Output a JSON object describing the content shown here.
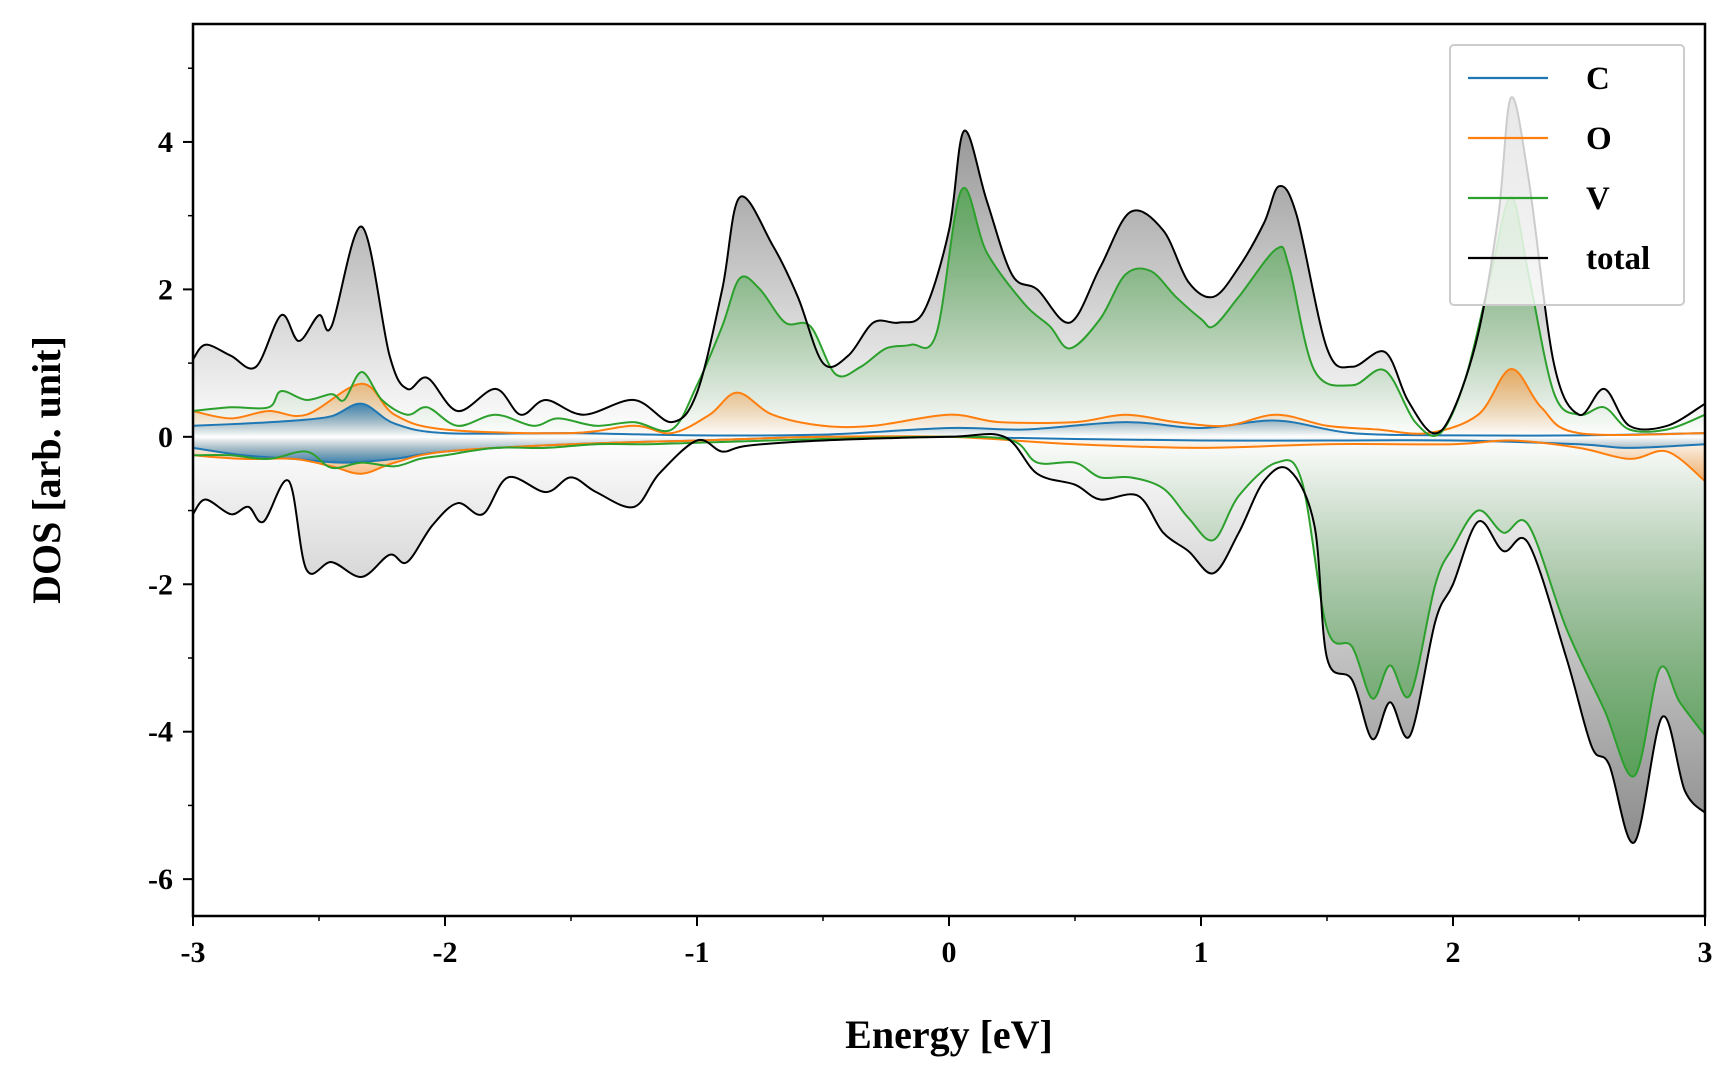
{
  "chart_data": {
    "type": "line",
    "title": "",
    "xlabel": "Energy [eV]",
    "ylabel": "DOS [arb. unit]",
    "xlim": [
      -3,
      3
    ],
    "ylim": [
      -6.5,
      5.6
    ],
    "grid": false,
    "legend_position": "top-right",
    "x_ticks": [
      -3,
      -2,
      -1,
      0,
      1,
      2,
      3
    ],
    "x_tick_labels": [
      "-3",
      "-2",
      "-1",
      "0",
      "1",
      "2",
      "3"
    ],
    "y_ticks": [
      -6,
      -4,
      -2,
      0,
      2,
      4
    ],
    "y_tick_labels": [
      "-6",
      "-4",
      "-2",
      "0",
      "2",
      "4"
    ],
    "series": [
      {
        "name": "C",
        "color": "#1f77b4",
        "up": [
          [
            -3,
            0.15
          ],
          [
            -2.8,
            0.18
          ],
          [
            -2.6,
            0.22
          ],
          [
            -2.45,
            0.28
          ],
          [
            -2.33,
            0.45
          ],
          [
            -2.2,
            0.18
          ],
          [
            -2,
            0.05
          ],
          [
            -1.5,
            0.05
          ],
          [
            -1,
            0.02
          ],
          [
            -0.5,
            0.03
          ],
          [
            0,
            0.12
          ],
          [
            0.3,
            0.1
          ],
          [
            0.7,
            0.2
          ],
          [
            1,
            0.12
          ],
          [
            1.3,
            0.22
          ],
          [
            1.6,
            0.05
          ],
          [
            2,
            0.02
          ],
          [
            2.5,
            0.02
          ],
          [
            3,
            0.05
          ]
        ],
        "down": [
          [
            -3,
            -0.15
          ],
          [
            -2.8,
            -0.25
          ],
          [
            -2.6,
            -0.3
          ],
          [
            -2.4,
            -0.35
          ],
          [
            -2.2,
            -0.3
          ],
          [
            -2,
            -0.2
          ],
          [
            -1.5,
            -0.1
          ],
          [
            -1,
            -0.05
          ],
          [
            -0.5,
            0
          ],
          [
            0,
            0
          ],
          [
            0.5,
            -0.03
          ],
          [
            1,
            -0.05
          ],
          [
            1.5,
            -0.05
          ],
          [
            2,
            -0.05
          ],
          [
            2.5,
            -0.1
          ],
          [
            2.7,
            -0.15
          ],
          [
            3,
            -0.1
          ]
        ]
      },
      {
        "name": "O",
        "color": "#ff7f0e",
        "up": [
          [
            -3,
            0.35
          ],
          [
            -2.85,
            0.25
          ],
          [
            -2.7,
            0.35
          ],
          [
            -2.55,
            0.3
          ],
          [
            -2.33,
            0.72
          ],
          [
            -2.2,
            0.3
          ],
          [
            -2,
            0.1
          ],
          [
            -1.5,
            0.05
          ],
          [
            -1.25,
            0.15
          ],
          [
            -1.1,
            0.05
          ],
          [
            -0.95,
            0.3
          ],
          [
            -0.84,
            0.6
          ],
          [
            -0.7,
            0.3
          ],
          [
            -0.5,
            0.15
          ],
          [
            -0.3,
            0.15
          ],
          [
            0,
            0.3
          ],
          [
            0.2,
            0.2
          ],
          [
            0.5,
            0.2
          ],
          [
            0.7,
            0.3
          ],
          [
            0.9,
            0.2
          ],
          [
            1.1,
            0.15
          ],
          [
            1.3,
            0.3
          ],
          [
            1.5,
            0.15
          ],
          [
            1.7,
            0.1
          ],
          [
            1.9,
            0.05
          ],
          [
            2.1,
            0.3
          ],
          [
            2.23,
            0.92
          ],
          [
            2.35,
            0.4
          ],
          [
            2.5,
            0.05
          ],
          [
            3,
            0.05
          ]
        ],
        "down": [
          [
            -3,
            -0.25
          ],
          [
            -2.8,
            -0.3
          ],
          [
            -2.6,
            -0.3
          ],
          [
            -2.45,
            -0.4
          ],
          [
            -2.33,
            -0.5
          ],
          [
            -2.2,
            -0.35
          ],
          [
            -2,
            -0.2
          ],
          [
            -1.5,
            -0.1
          ],
          [
            -1,
            -0.05
          ],
          [
            -0.5,
            0
          ],
          [
            0,
            0
          ],
          [
            0.5,
            -0.1
          ],
          [
            1,
            -0.15
          ],
          [
            1.5,
            -0.1
          ],
          [
            2,
            -0.1
          ],
          [
            2.23,
            -0.05
          ],
          [
            2.5,
            -0.15
          ],
          [
            2.7,
            -0.3
          ],
          [
            2.85,
            -0.2
          ],
          [
            3,
            -0.6
          ]
        ]
      },
      {
        "name": "V",
        "color": "#2ca02c",
        "up": [
          [
            -3,
            0.35
          ],
          [
            -2.85,
            0.4
          ],
          [
            -2.7,
            0.4
          ],
          [
            -2.65,
            0.62
          ],
          [
            -2.55,
            0.5
          ],
          [
            -2.45,
            0.58
          ],
          [
            -2.4,
            0.5
          ],
          [
            -2.33,
            0.88
          ],
          [
            -2.25,
            0.5
          ],
          [
            -2.15,
            0.3
          ],
          [
            -2.07,
            0.4
          ],
          [
            -1.95,
            0.15
          ],
          [
            -1.8,
            0.3
          ],
          [
            -1.65,
            0.15
          ],
          [
            -1.55,
            0.25
          ],
          [
            -1.4,
            0.15
          ],
          [
            -1.25,
            0.2
          ],
          [
            -1.1,
            0.1
          ],
          [
            -1,
            0.7
          ],
          [
            -0.9,
            1.5
          ],
          [
            -0.83,
            2.15
          ],
          [
            -0.75,
            2.0
          ],
          [
            -0.65,
            1.55
          ],
          [
            -0.55,
            1.5
          ],
          [
            -0.45,
            0.85
          ],
          [
            -0.35,
            0.95
          ],
          [
            -0.25,
            1.2
          ],
          [
            -0.15,
            1.25
          ],
          [
            -0.05,
            1.4
          ],
          [
            0.05,
            3.35
          ],
          [
            0.15,
            2.5
          ],
          [
            0.3,
            1.8
          ],
          [
            0.4,
            1.5
          ],
          [
            0.48,
            1.2
          ],
          [
            0.6,
            1.6
          ],
          [
            0.7,
            2.2
          ],
          [
            0.8,
            2.25
          ],
          [
            0.9,
            1.9
          ],
          [
            1,
            1.6
          ],
          [
            1.05,
            1.5
          ],
          [
            1.15,
            1.9
          ],
          [
            1.3,
            2.55
          ],
          [
            1.35,
            2.3
          ],
          [
            1.45,
            0.9
          ],
          [
            1.6,
            0.7
          ],
          [
            1.73,
            0.9
          ],
          [
            1.85,
            0.2
          ],
          [
            1.95,
            0.05
          ],
          [
            2.05,
            0.8
          ],
          [
            2.15,
            2.2
          ],
          [
            2.23,
            3.25
          ],
          [
            2.3,
            2.2
          ],
          [
            2.4,
            0.6
          ],
          [
            2.5,
            0.3
          ],
          [
            2.6,
            0.4
          ],
          [
            2.7,
            0.1
          ],
          [
            2.85,
            0.1
          ],
          [
            3,
            0.3
          ]
        ],
        "down": [
          [
            -3,
            -0.25
          ],
          [
            -2.85,
            -0.25
          ],
          [
            -2.7,
            -0.3
          ],
          [
            -2.55,
            -0.2
          ],
          [
            -2.45,
            -0.42
          ],
          [
            -2.33,
            -0.35
          ],
          [
            -2.2,
            -0.4
          ],
          [
            -2.1,
            -0.3
          ],
          [
            -2,
            -0.25
          ],
          [
            -1.8,
            -0.15
          ],
          [
            -1.6,
            -0.15
          ],
          [
            -1.4,
            -0.1
          ],
          [
            -1.2,
            -0.1
          ],
          [
            -1,
            -0.08
          ],
          [
            -0.5,
            -0.03
          ],
          [
            0,
            0
          ],
          [
            0.25,
            -0.05
          ],
          [
            0.35,
            -0.35
          ],
          [
            0.5,
            -0.35
          ],
          [
            0.6,
            -0.55
          ],
          [
            0.72,
            -0.55
          ],
          [
            0.85,
            -0.7
          ],
          [
            0.95,
            -1.1
          ],
          [
            1.05,
            -1.4
          ],
          [
            1.15,
            -0.8
          ],
          [
            1.3,
            -0.35
          ],
          [
            1.4,
            -0.6
          ],
          [
            1.5,
            -2.6
          ],
          [
            1.6,
            -2.85
          ],
          [
            1.68,
            -3.55
          ],
          [
            1.75,
            -3.1
          ],
          [
            1.83,
            -3.5
          ],
          [
            1.93,
            -2.0
          ],
          [
            2.0,
            -1.5
          ],
          [
            2.1,
            -1.0
          ],
          [
            2.2,
            -1.3
          ],
          [
            2.3,
            -1.2
          ],
          [
            2.45,
            -2.6
          ],
          [
            2.6,
            -3.7
          ],
          [
            2.72,
            -4.6
          ],
          [
            2.82,
            -3.15
          ],
          [
            2.9,
            -3.6
          ],
          [
            3,
            -4.05
          ]
        ]
      },
      {
        "name": "total",
        "color": "#000000",
        "up": [
          [
            -3,
            1.05
          ],
          [
            -2.95,
            1.25
          ],
          [
            -2.85,
            1.1
          ],
          [
            -2.75,
            0.95
          ],
          [
            -2.65,
            1.65
          ],
          [
            -2.58,
            1.3
          ],
          [
            -2.5,
            1.65
          ],
          [
            -2.45,
            1.5
          ],
          [
            -2.33,
            2.85
          ],
          [
            -2.22,
            1.1
          ],
          [
            -2.15,
            0.65
          ],
          [
            -2.07,
            0.8
          ],
          [
            -1.95,
            0.35
          ],
          [
            -1.8,
            0.65
          ],
          [
            -1.7,
            0.3
          ],
          [
            -1.6,
            0.5
          ],
          [
            -1.45,
            0.3
          ],
          [
            -1.25,
            0.5
          ],
          [
            -1.1,
            0.2
          ],
          [
            -1,
            0.6
          ],
          [
            -0.9,
            2.0
          ],
          [
            -0.83,
            3.25
          ],
          [
            -0.7,
            2.6
          ],
          [
            -0.6,
            1.9
          ],
          [
            -0.5,
            1.0
          ],
          [
            -0.4,
            1.1
          ],
          [
            -0.3,
            1.55
          ],
          [
            -0.2,
            1.55
          ],
          [
            -0.1,
            1.7
          ],
          [
            0,
            2.8
          ],
          [
            0.06,
            4.15
          ],
          [
            0.15,
            3.2
          ],
          [
            0.25,
            2.2
          ],
          [
            0.35,
            2.0
          ],
          [
            0.48,
            1.55
          ],
          [
            0.6,
            2.3
          ],
          [
            0.72,
            3.05
          ],
          [
            0.85,
            2.8
          ],
          [
            0.95,
            2.1
          ],
          [
            1.05,
            1.9
          ],
          [
            1.15,
            2.3
          ],
          [
            1.25,
            2.9
          ],
          [
            1.31,
            3.4
          ],
          [
            1.38,
            3.0
          ],
          [
            1.5,
            1.2
          ],
          [
            1.6,
            0.95
          ],
          [
            1.73,
            1.15
          ],
          [
            1.82,
            0.5
          ],
          [
            1.92,
            0.05
          ],
          [
            2.0,
            0.35
          ],
          [
            2.1,
            1.4
          ],
          [
            2.18,
            3.0
          ],
          [
            2.23,
            4.6
          ],
          [
            2.3,
            3.5
          ],
          [
            2.4,
            1.0
          ],
          [
            2.5,
            0.3
          ],
          [
            2.6,
            0.65
          ],
          [
            2.7,
            0.15
          ],
          [
            2.85,
            0.15
          ],
          [
            3,
            0.45
          ]
        ],
        "down": [
          [
            -3,
            -1.05
          ],
          [
            -2.95,
            -0.85
          ],
          [
            -2.85,
            -1.05
          ],
          [
            -2.78,
            -0.95
          ],
          [
            -2.72,
            -1.15
          ],
          [
            -2.62,
            -0.6
          ],
          [
            -2.55,
            -1.8
          ],
          [
            -2.45,
            -1.7
          ],
          [
            -2.33,
            -1.9
          ],
          [
            -2.22,
            -1.6
          ],
          [
            -2.15,
            -1.7
          ],
          [
            -2.05,
            -1.2
          ],
          [
            -1.95,
            -0.9
          ],
          [
            -1.85,
            -1.05
          ],
          [
            -1.75,
            -0.55
          ],
          [
            -1.6,
            -0.75
          ],
          [
            -1.5,
            -0.55
          ],
          [
            -1.4,
            -0.75
          ],
          [
            -1.25,
            -0.95
          ],
          [
            -1.15,
            -0.5
          ],
          [
            -1,
            -0.05
          ],
          [
            -0.9,
            -0.2
          ],
          [
            -0.8,
            -0.12
          ],
          [
            -0.5,
            -0.05
          ],
          [
            0,
            0
          ],
          [
            0.22,
            0
          ],
          [
            0.35,
            -0.5
          ],
          [
            0.5,
            -0.65
          ],
          [
            0.6,
            -0.85
          ],
          [
            0.75,
            -0.8
          ],
          [
            0.85,
            -1.3
          ],
          [
            0.95,
            -1.55
          ],
          [
            1.05,
            -1.85
          ],
          [
            1.15,
            -1.3
          ],
          [
            1.25,
            -0.6
          ],
          [
            1.35,
            -0.45
          ],
          [
            1.45,
            -1.2
          ],
          [
            1.5,
            -3.0
          ],
          [
            1.6,
            -3.3
          ],
          [
            1.68,
            -4.1
          ],
          [
            1.75,
            -3.6
          ],
          [
            1.83,
            -4.05
          ],
          [
            1.93,
            -2.5
          ],
          [
            2.0,
            -2.0
          ],
          [
            2.1,
            -1.15
          ],
          [
            2.2,
            -1.55
          ],
          [
            2.3,
            -1.45
          ],
          [
            2.45,
            -3.0
          ],
          [
            2.55,
            -4.2
          ],
          [
            2.62,
            -4.45
          ],
          [
            2.72,
            -5.5
          ],
          [
            2.83,
            -3.8
          ],
          [
            2.92,
            -4.8
          ],
          [
            3,
            -5.1
          ]
        ]
      }
    ]
  }
}
